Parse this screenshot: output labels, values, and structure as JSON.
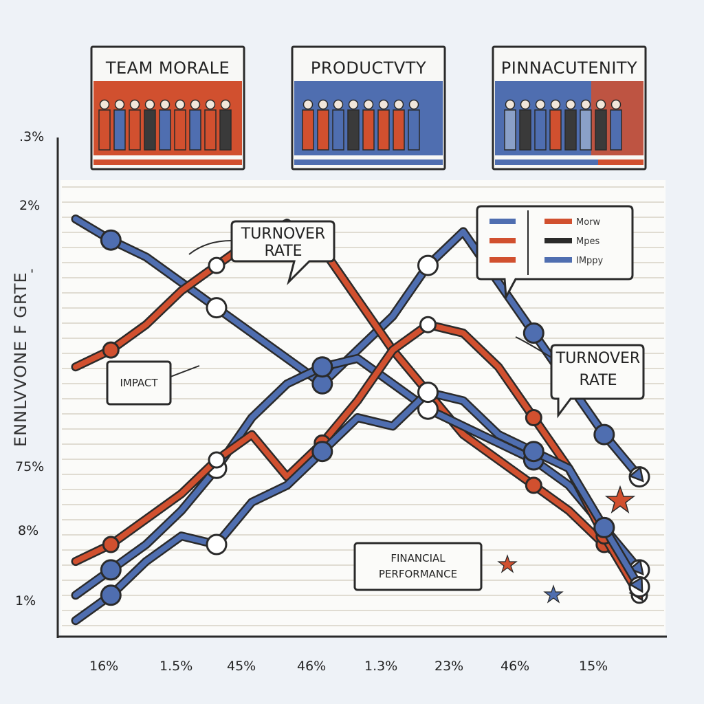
{
  "colors": {
    "background": "#eef2f7",
    "red": "#d1502f",
    "blue": "#4f6eb0",
    "dark": "#2a2a2a"
  },
  "panels": [
    {
      "title": "TEAM MORALE",
      "fill": "red"
    },
    {
      "title": "PRODUCTVTY",
      "fill": "blue"
    },
    {
      "title": "PINNACUTENITY",
      "fill": "mixed"
    }
  ],
  "callouts": {
    "turnover_top_line1": "TURNOVER",
    "turnover_top_line2": "RATE",
    "turnover_right_line1": "TURNOVER",
    "turnover_right_line2": "RATE",
    "impact": "IMPACT",
    "financial_line1": "FINANCIAL",
    "financial_line2": "PERFORMANCE"
  },
  "legend": {
    "entries": [
      "Morw",
      "Mpes",
      "IMppy"
    ]
  },
  "chart_data": {
    "type": "line",
    "title": "",
    "xlabel": "",
    "ylabel": "ENNLVVONE F GRTE",
    "x_tick_labels": [
      "16%",
      "1.5%",
      "45%",
      "46%",
      "1.3%",
      "23%",
      "46%",
      "15%"
    ],
    "y_tick_labels": [
      ".3%",
      "2%",
      "'",
      "75%",
      "8%",
      "1%"
    ],
    "grid": true,
    "x": [
      1,
      2,
      3,
      4,
      5,
      6,
      7,
      8,
      9,
      10,
      11,
      12,
      13,
      14,
      15,
      16,
      17
    ],
    "series": [
      {
        "color": "blue",
        "values": [
          97,
          92,
          88,
          82,
          76,
          70,
          64,
          58,
          66,
          74,
          86,
          94,
          82,
          70,
          58,
          46,
          36
        ]
      },
      {
        "color": "red",
        "values": [
          62,
          66,
          72,
          80,
          86,
          92,
          96,
          90,
          78,
          66,
          56,
          46,
          40,
          34,
          28,
          20,
          14
        ]
      },
      {
        "color": "blue",
        "values": [
          8,
          14,
          20,
          28,
          38,
          50,
          58,
          62,
          64,
          58,
          52,
          48,
          44,
          40,
          34,
          24,
          14
        ]
      },
      {
        "color": "red",
        "values": [
          16,
          20,
          26,
          32,
          40,
          46,
          36,
          44,
          54,
          66,
          72,
          70,
          62,
          50,
          38,
          22,
          8
        ]
      },
      {
        "color": "blue",
        "values": [
          2,
          8,
          16,
          22,
          20,
          30,
          34,
          42,
          50,
          48,
          56,
          54,
          46,
          42,
          38,
          24,
          10
        ]
      }
    ]
  }
}
